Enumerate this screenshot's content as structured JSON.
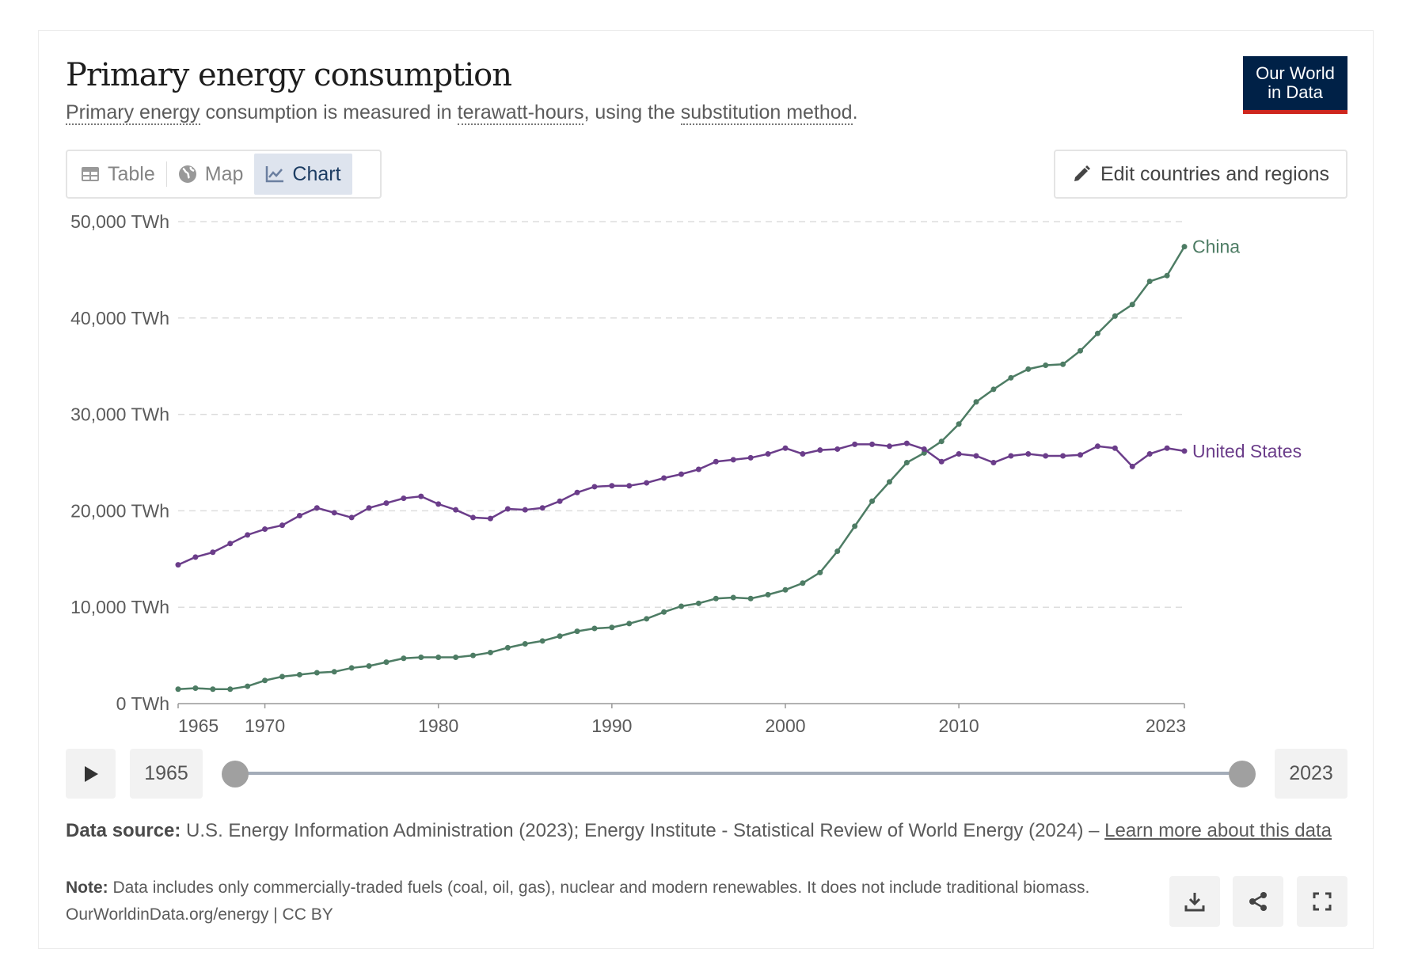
{
  "header": {
    "title": "Primary energy consumption",
    "subtitle": {
      "t1": "Primary energy",
      "t2": " consumption is measured in ",
      "t3": "terawatt-hours",
      "t4": ", using the ",
      "t5": "substitution method",
      "t6": "."
    },
    "logo": "Our World in Data"
  },
  "tabs": [
    {
      "label": "Table",
      "icon": "table-icon"
    },
    {
      "label": "Map",
      "icon": "globe-icon"
    },
    {
      "label": "Chart",
      "icon": "line-chart-icon",
      "active": true
    }
  ],
  "edit_button": "Edit countries and regions",
  "timeline": {
    "start": "1965",
    "end": "2023",
    "start_value": 1965,
    "end_value": 2023
  },
  "footer": {
    "source_label": "Data source:",
    "source_text": " U.S. Energy Information Administration (2023); Energy Institute - Statistical Review of World Energy (2024) – ",
    "learn_more": "Learn more about this data",
    "note_label": "Note:",
    "note_text": " Data includes only commercially-traded fuels (coal, oil, gas), nuclear and modern renewables. It does not include traditional biomass.",
    "url": "OurWorldinData.org/energy | CC BY"
  },
  "chart_data": {
    "type": "line",
    "title": "Primary energy consumption",
    "xlabel": "",
    "ylabel": "",
    "xlim": [
      1965,
      2023
    ],
    "ylim": [
      0,
      50000
    ],
    "y_ticks": [
      0,
      10000,
      20000,
      30000,
      40000,
      50000
    ],
    "y_tick_labels": [
      "0 TWh",
      "10,000 TWh",
      "20,000 TWh",
      "30,000 TWh",
      "40,000 TWh",
      "50,000 TWh"
    ],
    "x_ticks": [
      1965,
      1970,
      1980,
      1990,
      2000,
      2010,
      2023
    ],
    "x_tick_labels": [
      "1965",
      "1970",
      "1980",
      "1990",
      "2000",
      "2010",
      "2023"
    ],
    "grid": true,
    "legend": "line-end labels",
    "series": [
      {
        "name": "China",
        "color": "#4d7c64",
        "values": [
          1500,
          1600,
          1500,
          1500,
          1800,
          2400,
          2800,
          3000,
          3200,
          3300,
          3700,
          3900,
          4300,
          4700,
          4800,
          4800,
          4800,
          5000,
          5300,
          5800,
          6200,
          6500,
          7000,
          7500,
          7800,
          7900,
          8300,
          8800,
          9500,
          10100,
          10400,
          10900,
          11000,
          10900,
          11300,
          11800,
          12500,
          13600,
          15800,
          18400,
          21000,
          23000,
          25000,
          26000,
          27200,
          29000,
          31300,
          32600,
          33800,
          34700,
          35100,
          35200,
          36600,
          38400,
          40200,
          41400,
          43800,
          44400,
          47400
        ]
      },
      {
        "name": "United States",
        "color": "#6b3d8a",
        "values": [
          14400,
          15200,
          15700,
          16600,
          17500,
          18100,
          18500,
          19500,
          20300,
          19800,
          19300,
          20300,
          20800,
          21300,
          21500,
          20700,
          20100,
          19300,
          19200,
          20200,
          20100,
          20300,
          21000,
          21900,
          22500,
          22600,
          22600,
          22900,
          23400,
          23800,
          24300,
          25100,
          25300,
          25500,
          25900,
          26500,
          25900,
          26300,
          26400,
          26900,
          26900,
          26700,
          27000,
          26400,
          25100,
          25900,
          25700,
          25000,
          25700,
          25900,
          25700,
          25700,
          25800,
          26700,
          26500,
          24600,
          25900,
          26500,
          26200
        ]
      }
    ]
  }
}
